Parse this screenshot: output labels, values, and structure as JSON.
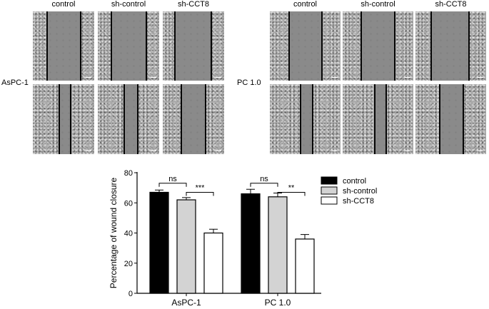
{
  "figure": {
    "column_labels": [
      "control",
      "sh-control",
      "sh-CCT8"
    ],
    "row_labels": [
      "AsPC-1",
      "PC 1.0"
    ]
  },
  "chart_data": {
    "type": "bar",
    "ylabel": "Percentage of wound closure",
    "ylim": [
      0,
      80
    ],
    "yticks": [
      0,
      20,
      40,
      60,
      80
    ],
    "categories": [
      "AsPC-1",
      "PC 1.0"
    ],
    "series": [
      {
        "name": "control",
        "values": [
          67,
          66
        ],
        "errors": [
          1.5,
          3
        ],
        "color": "#000000"
      },
      {
        "name": "sh-control",
        "values": [
          62,
          64
        ],
        "errors": [
          1.5,
          2.5
        ],
        "color": "#d3d3d3"
      },
      {
        "name": "sh-CCT8",
        "values": [
          40,
          36
        ],
        "errors": [
          2.5,
          3
        ],
        "color": "#ffffff"
      }
    ],
    "significance": [
      {
        "group": 0,
        "from": 0,
        "to": 1,
        "label": "ns",
        "at": 73
      },
      {
        "group": 0,
        "from": 1,
        "to": 2,
        "label": "***",
        "at": 67
      },
      {
        "group": 1,
        "from": 0,
        "to": 1,
        "label": "ns",
        "at": 73
      },
      {
        "group": 1,
        "from": 1,
        "to": 2,
        "label": "**",
        "at": 67
      }
    ],
    "legend_position": "right"
  }
}
